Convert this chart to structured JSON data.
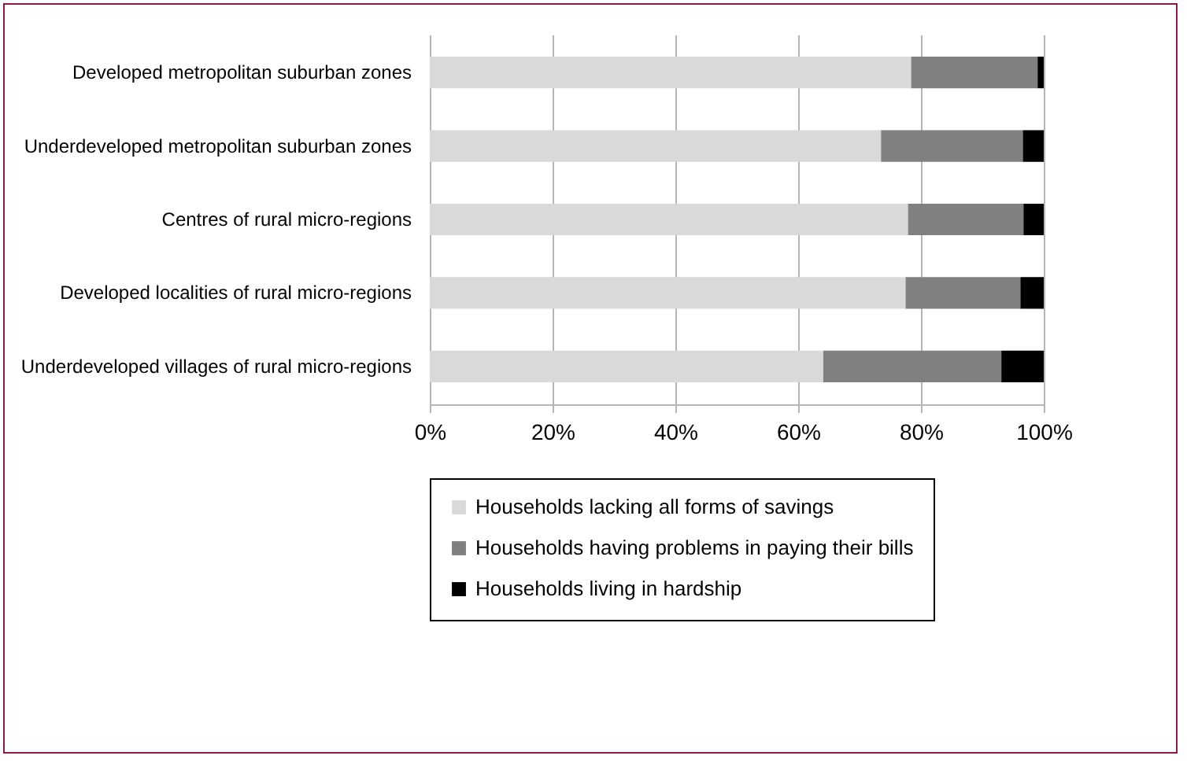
{
  "chart_data": {
    "type": "bar",
    "orientation": "horizontal",
    "stacked": true,
    "categories": [
      "Developed metropolitan suburban zones",
      "Underdeveloped metropolitan suburban zones",
      "Centres of rural micro-regions",
      "Developed localities of rural micro-regions",
      "Underdeveloped villages of rural micro-regions"
    ],
    "series": [
      {
        "name": "Households lacking all forms of savings",
        "color": "#d9d9d9",
        "values": [
          78.4,
          73.5,
          77.9,
          77.5,
          64.1
        ]
      },
      {
        "name": "Households having problems in paying their bills",
        "color": "#808080",
        "values": [
          20.6,
          23.1,
          18.8,
          18.7,
          29.0
        ]
      },
      {
        "name": "Households living in hardship",
        "color": "#000000",
        "values": [
          1.0,
          3.4,
          3.3,
          3.8,
          6.9
        ]
      }
    ],
    "xlim": [
      0,
      100
    ],
    "xticks": [
      {
        "value": 0,
        "label": "0%"
      },
      {
        "value": 20,
        "label": "20%"
      },
      {
        "value": 40,
        "label": "40%"
      },
      {
        "value": 60,
        "label": "60%"
      },
      {
        "value": 80,
        "label": "80%"
      },
      {
        "value": 100,
        "label": "100%"
      }
    ],
    "grid": "x",
    "legend": "bottom"
  }
}
